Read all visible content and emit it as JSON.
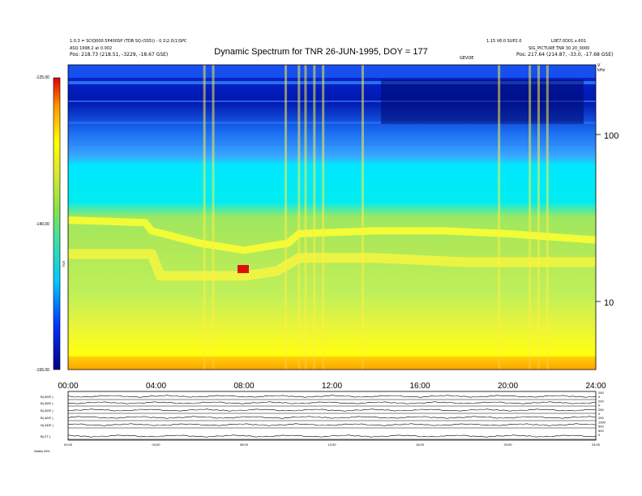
{
  "header": {
    "left_line1": "1.0.3 = SCIQ000.5P400SP (TDB SQ-(SS5)) - 0.1\\2.0(1)SPC",
    "left_line2": "ASQ 1998.2 at 0.002",
    "left_line3": "Pos:   218.73 (218.51, -3229, -18.67 GSE)",
    "right_line1": "1.15 V6.0 SUP2.0",
    "right_line2": "L0E7.0D01.x.601",
    "right_line3": "SIG_PICTURE  TNR 30 20_0000",
    "right_line4": "Pos:   217.64 (214.87, -33.0, -17.68 GSE)",
    "center_small": "GEVOE",
    "corner_small": "V\nkHz"
  },
  "chart_data": {
    "type": "heatmap",
    "title": "Dynamic Spectrum for TNR 26-JUN-1995, DOY = 177",
    "x": [
      "00:00",
      "04:00",
      "08:00",
      "12:00",
      "16:00",
      "20:00",
      "24:00"
    ],
    "x_range": [
      "00:00",
      "24:00"
    ],
    "y_label_right": "kHz",
    "y_ticks_right": [
      "100",
      "10"
    ],
    "y_scale": "log",
    "colorbar": {
      "label": "TNR",
      "ticks": [
        "-125.00",
        "-140.00",
        "-155.00"
      ],
      "range": [
        -155,
        -125
      ],
      "colors": [
        "#00008b",
        "#0033ff",
        "#00c8ff",
        "#40e0a0",
        "#8be04a",
        "#dfe830",
        "#ffff00",
        "#ff9a00",
        "#e00000"
      ]
    },
    "bands": [
      {
        "name": "plasma line",
        "time_h": [
          0.0,
          3.5,
          3.8,
          6.0,
          8.0,
          10.0,
          10.5,
          14.0,
          17.0,
          20.0,
          22.0,
          24.0
        ],
        "freq_khz": [
          32,
          31,
          28,
          24,
          22,
          24,
          27,
          28,
          28,
          27,
          26,
          25
        ]
      },
      {
        "name": "bright emission",
        "time_h": [
          0.0,
          3.8,
          4.2,
          6.0,
          8.0,
          9.5,
          10.5,
          14.0,
          18.0,
          22.0,
          24.0
        ],
        "freq_khz": [
          21,
          21,
          16,
          16,
          16,
          17,
          20,
          20,
          19,
          19,
          19
        ]
      }
    ],
    "bursts_time_h": [
      6.2,
      6.6,
      9.9,
      10.5,
      10.8,
      11.2,
      11.6,
      13.4,
      19.6,
      21.0,
      21.4,
      21.8
    ]
  },
  "panel_labels": {
    "left": [
      "B( ADE )",
      "B( ADE )",
      "B( ADE )",
      "B( ADE )",
      "N( ADE )",
      "B[ 0T ]"
    ],
    "right": [
      "250",
      "0",
      "200",
      "0",
      "250",
      "0",
      "250",
      "1000",
      "500",
      "500",
      "0"
    ]
  },
  "bottom_axis": [
    "00:00",
    "04:00",
    "08:00",
    "12:00",
    "16:00",
    "20:00",
    "24:00"
  ],
  "footer_label": "Wales  W/4"
}
